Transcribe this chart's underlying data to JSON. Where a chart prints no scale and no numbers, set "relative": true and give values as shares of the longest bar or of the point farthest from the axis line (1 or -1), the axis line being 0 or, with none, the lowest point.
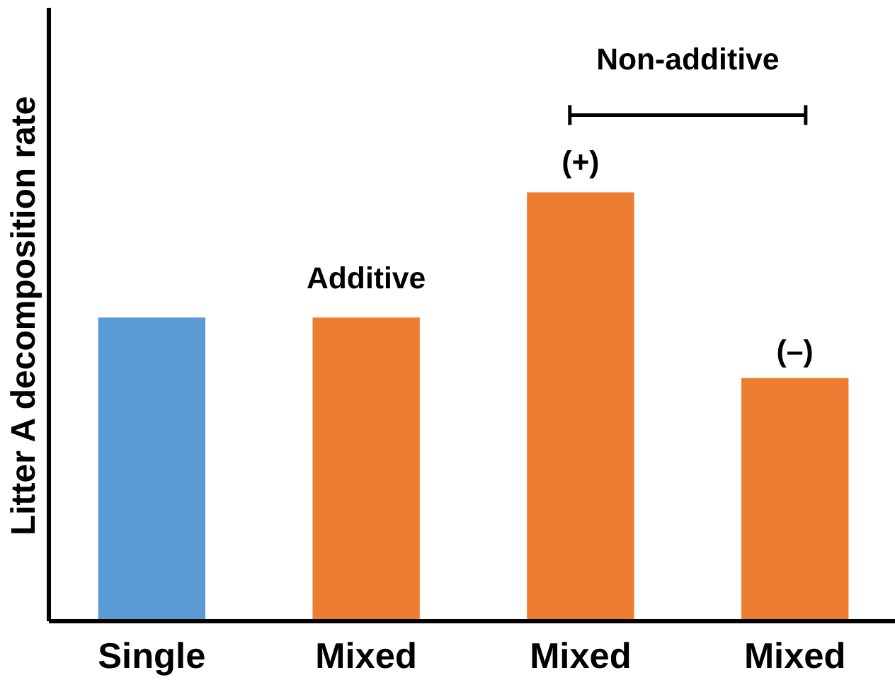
{
  "chart_data": {
    "type": "bar",
    "relative": true,
    "ylabel": "Litter A decomposition rate",
    "categories": [
      "Single",
      "Mixed",
      "Mixed",
      "Mixed"
    ],
    "values": [
      0.708,
      0.708,
      1,
      0.567
    ],
    "colors": [
      "#5b9bd5",
      "#ed7d31",
      "#ed7d31",
      "#ed7d31"
    ],
    "annotations": [
      "Additive",
      "Non-additive",
      "(+)",
      "(–)"
    ],
    "grid": false
  }
}
